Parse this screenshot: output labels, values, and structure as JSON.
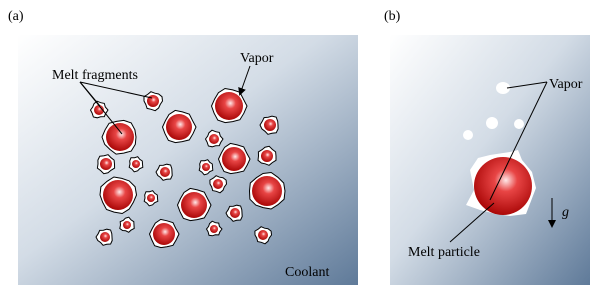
{
  "panel_a": {
    "label": "(a)",
    "melt_fragments": "Melt fragments",
    "vapor": "Vapor",
    "coolant": "Coolant"
  },
  "panel_b": {
    "label": "(b)",
    "vapor": "Vapor",
    "gravity": "g",
    "melt_particle": "Melt particle"
  }
}
